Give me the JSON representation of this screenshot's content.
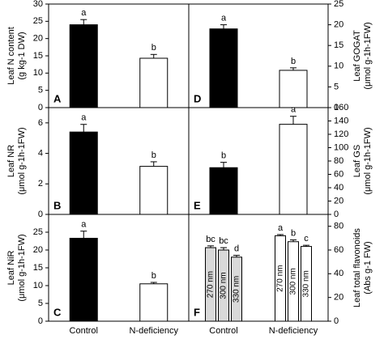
{
  "chart_data": [
    {
      "type": "bar",
      "panel": "A",
      "ylabel": [
        "Leaf N content",
        "(g kg-1 DW)"
      ],
      "axis_side": "left",
      "ylim": [
        0,
        30
      ],
      "yticks": [
        0,
        5,
        10,
        15,
        20,
        25,
        30
      ],
      "values": [
        24,
        14.3
      ],
      "errors": [
        1.5,
        1.1
      ],
      "labels": [
        "a",
        "b"
      ],
      "colors": [
        "#000000",
        "#ffffff"
      ]
    },
    {
      "type": "bar",
      "panel": "B",
      "ylabel": [
        "Leaf NR",
        "(μmol g-1h-1FW)"
      ],
      "axis_side": "left",
      "ylim": [
        0,
        7
      ],
      "yticks": [
        0,
        2,
        4,
        6
      ],
      "values": [
        5.4,
        3.15
      ],
      "errors": [
        0.5,
        0.3
      ],
      "labels": [
        "a",
        "b"
      ],
      "colors": [
        "#000000",
        "#ffffff"
      ]
    },
    {
      "type": "bar",
      "panel": "C",
      "ylabel": [
        "Leaf NiR",
        "(μmol g-1h-1FW)"
      ],
      "axis_side": "left",
      "ylim": [
        0,
        30
      ],
      "yticks": [
        0,
        5,
        10,
        15,
        20,
        25
      ],
      "categories": [
        "Control",
        "N-deficiency"
      ],
      "values": [
        23.3,
        10.5
      ],
      "errors": [
        2,
        0.4
      ],
      "labels": [
        "a",
        "b"
      ],
      "colors": [
        "#000000",
        "#ffffff"
      ]
    },
    {
      "type": "bar",
      "panel": "D",
      "ylabel": [
        "Leaf GOGAT",
        "(μmol g-1h-1FW)"
      ],
      "axis_side": "right",
      "ylim": [
        0,
        25
      ],
      "yticks": [
        0,
        5,
        10,
        15,
        20,
        25
      ],
      "values": [
        19,
        9
      ],
      "errors": [
        1,
        0.6
      ],
      "labels": [
        "a",
        "b"
      ],
      "colors": [
        "#000000",
        "#ffffff"
      ]
    },
    {
      "type": "bar",
      "panel": "E",
      "ylabel": [
        "Leaf GS",
        "(μmol g-1h-1FW)"
      ],
      "axis_side": "right",
      "ylim": [
        0,
        160
      ],
      "yticks": [
        0,
        20,
        40,
        60,
        80,
        100,
        120,
        140,
        160
      ],
      "values": [
        70,
        135
      ],
      "errors": [
        8,
        12
      ],
      "labels": [
        "b",
        "a"
      ],
      "colors": [
        "#000000",
        "#ffffff"
      ]
    },
    {
      "type": "grouped_bar",
      "panel": "F",
      "ylabel": [
        "Leaf total flavonoids",
        "(Abs g-1 FW)"
      ],
      "axis_side": "right",
      "ylim": [
        0,
        90
      ],
      "yticks": [
        0,
        20,
        40,
        60,
        80
      ],
      "categories": [
        "Control",
        "N-deficiency"
      ],
      "group_colors": [
        "#d9d9d9",
        "#ffffff"
      ],
      "series": [
        {
          "name": "270 nm",
          "values": [
            62,
            72
          ],
          "errors": [
            1.5,
            1
          ],
          "labels": [
            "bc",
            "a"
          ]
        },
        {
          "name": "300 nm",
          "values": [
            60,
            67
          ],
          "errors": [
            2,
            1.5
          ],
          "labels": [
            "bc",
            "b"
          ]
        },
        {
          "name": "330 nm",
          "values": [
            54,
            63
          ],
          "errors": [
            1.5,
            1
          ],
          "labels": [
            "d",
            "c"
          ]
        }
      ]
    }
  ]
}
